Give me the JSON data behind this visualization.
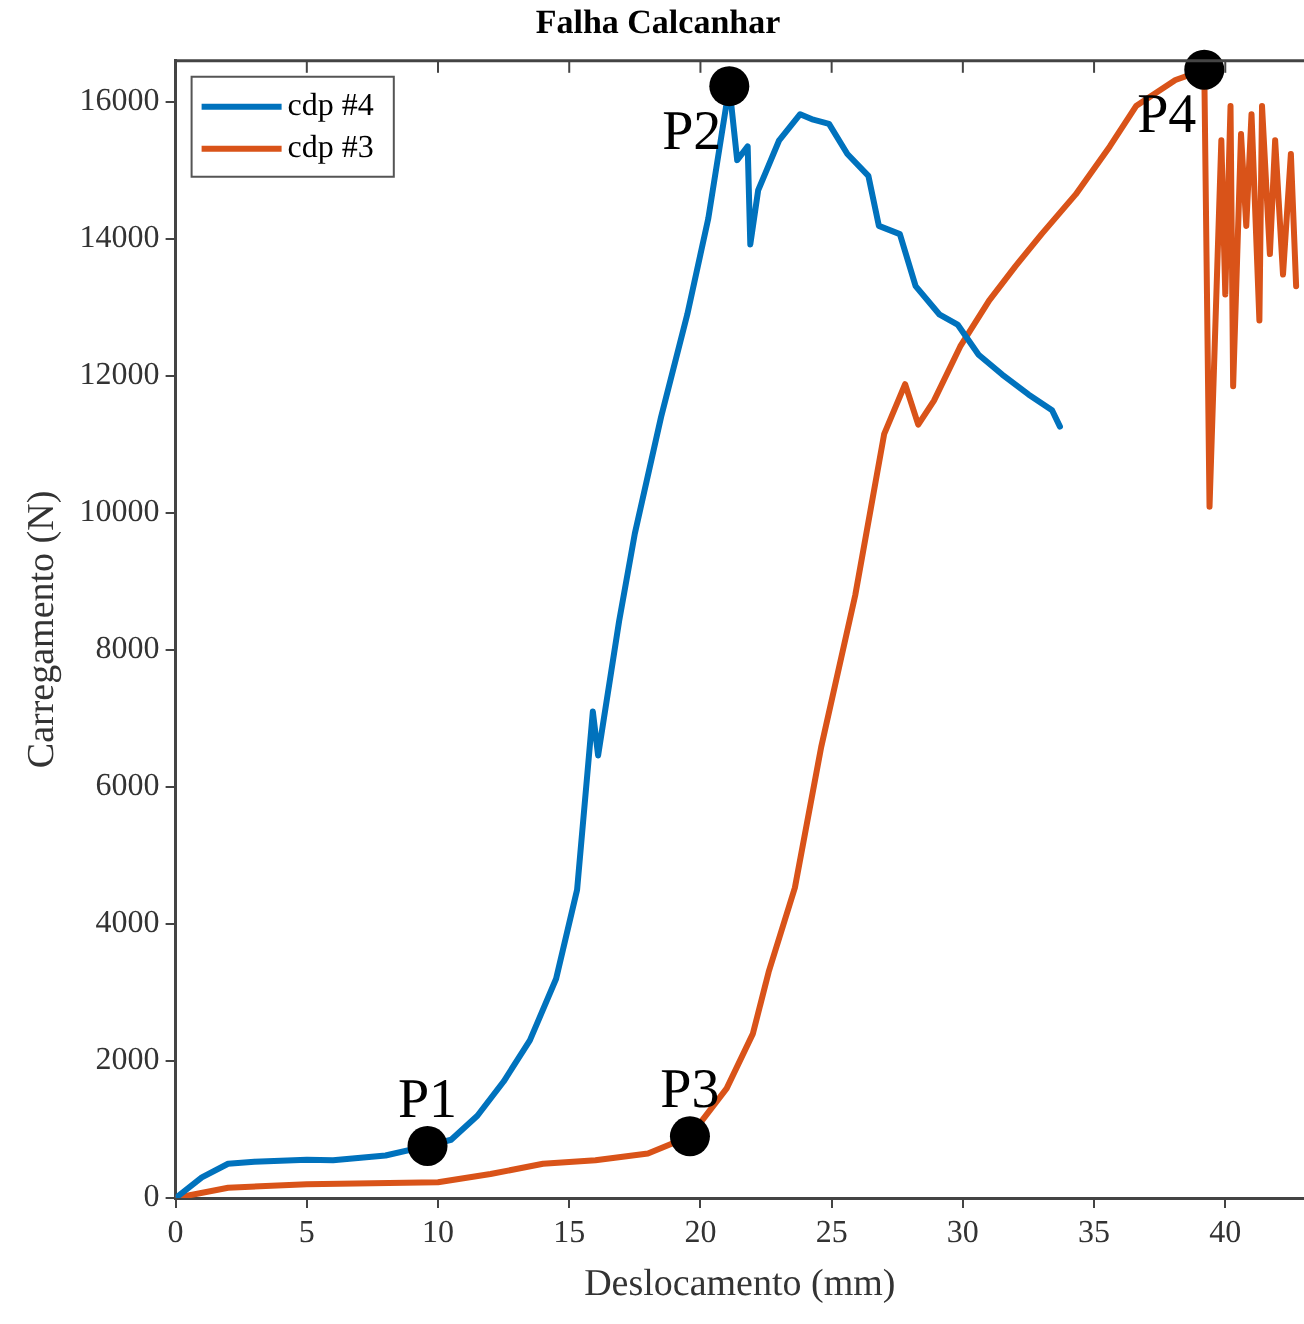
{
  "chart_data": {
    "type": "line",
    "title": "Falha Calcanhar",
    "xlabel": "Deslocamento (mm)",
    "ylabel": "Carregamento (N)",
    "xlim": [
      0,
      43
    ],
    "ylim": [
      0,
      16600
    ],
    "xticks": [
      0,
      5,
      10,
      15,
      20,
      25,
      30,
      35,
      40
    ],
    "yticks": [
      0,
      2000,
      4000,
      6000,
      8000,
      10000,
      12000,
      14000,
      16000
    ],
    "grid": false,
    "legend": "top left",
    "marker": "none",
    "line_style": "solid",
    "series": [
      {
        "name": "cdp #4",
        "color": "#0072bd",
        "x": [
          0,
          1,
          2,
          3,
          5,
          6,
          8,
          9.6,
          10.5,
          11.5,
          12.5,
          13.5,
          14.5,
          15.3,
          15.9,
          16.1,
          16.9,
          17.5,
          18.5,
          19.5,
          20.3,
          21.1,
          21.4,
          21.8,
          21.9,
          22.2,
          23,
          23.8,
          24.3,
          24.9,
          25.6,
          26.4,
          26.8,
          27.6,
          28.2,
          29.1,
          29.8,
          30.6,
          31.5,
          32.5,
          33.4,
          33.7
        ],
        "values": [
          0,
          300,
          500,
          530,
          560,
          550,
          620,
          760,
          850,
          1200,
          1700,
          2300,
          3200,
          4500,
          7100,
          6460,
          8420,
          9700,
          11400,
          12900,
          14300,
          16230,
          15150,
          15350,
          13920,
          14710,
          15440,
          15820,
          15740,
          15680,
          15240,
          14920,
          14190,
          14070,
          13310,
          12900,
          12750,
          12310,
          12020,
          11730,
          11500,
          11260
        ]
      },
      {
        "name": "cdp #3",
        "color": "#d95319",
        "x": [
          0,
          2,
          5,
          10,
          12,
          14,
          16,
          18,
          19.6,
          21,
          22,
          22.6,
          23.6,
          24.6,
          25.9,
          27,
          27.8,
          28.3,
          28.9,
          29.9,
          31,
          32,
          33,
          34.3,
          35.6,
          36.6,
          38.1,
          39.2,
          39.4,
          39.85,
          40,
          40.2,
          40.3,
          40.6,
          40.8,
          41,
          41.3,
          41.4,
          41.7,
          41.9,
          42.2,
          42.5,
          42.7
        ],
        "values": [
          0,
          150,
          200,
          230,
          350,
          500,
          550,
          650,
          900,
          1600,
          2400,
          3300,
          4530,
          6580,
          8800,
          11150,
          11880,
          11290,
          11640,
          12430,
          13100,
          13600,
          14070,
          14650,
          15350,
          15940,
          16320,
          16470,
          10090,
          15440,
          13190,
          15940,
          11850,
          15530,
          14190,
          15820,
          12810,
          15940,
          13780,
          15440,
          13480,
          15240,
          13310
        ]
      }
    ],
    "annotations": [
      {
        "text": "P1",
        "x": 9.6,
        "y": 760
      },
      {
        "text": "P2",
        "x": 21.1,
        "y": 16230
      },
      {
        "text": "P3",
        "x": 19.6,
        "y": 900
      },
      {
        "text": "P4",
        "x": 39.2,
        "y": 16470
      }
    ]
  }
}
